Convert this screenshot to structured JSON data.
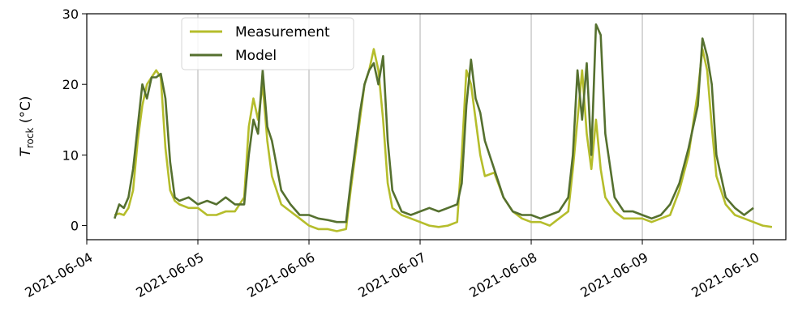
{
  "chart_data": {
    "type": "line",
    "ylabel_main": "T",
    "ylabel_sub": "rock",
    "ylabel_unit": " (°C)",
    "xlim": [
      "2021-06-04T00:00",
      "2021-06-10T07:00"
    ],
    "ylim": [
      -2,
      30
    ],
    "grid": "vertical",
    "legend_position": "top-left",
    "x_ticks": [
      "2021-06-04",
      "2021-06-05",
      "2021-06-06",
      "2021-06-07",
      "2021-06-08",
      "2021-06-09",
      "2021-06-10"
    ],
    "y_ticks": [
      0,
      10,
      20,
      30
    ],
    "series": [
      {
        "name": "Measurement",
        "color": "#b5bd2b",
        "points": [
          [
            "2021-06-04T06:00",
            1.5
          ],
          [
            "2021-06-04T07:00",
            1.7
          ],
          [
            "2021-06-04T08:00",
            1.5
          ],
          [
            "2021-06-04T09:00",
            2.5
          ],
          [
            "2021-06-04T10:00",
            5.0
          ],
          [
            "2021-06-04T11:00",
            12.0
          ],
          [
            "2021-06-04T12:00",
            17.0
          ],
          [
            "2021-06-04T13:00",
            20.0
          ],
          [
            "2021-06-04T14:00",
            21.0
          ],
          [
            "2021-06-04T15:00",
            22.0
          ],
          [
            "2021-06-04T16:00",
            21.0
          ],
          [
            "2021-06-04T17:00",
            11.0
          ],
          [
            "2021-06-04T18:00",
            5.0
          ],
          [
            "2021-06-04T19:00",
            3.5
          ],
          [
            "2021-06-04T20:00",
            3.0
          ],
          [
            "2021-06-04T22:00",
            2.5
          ],
          [
            "2021-06-05T00:00",
            2.5
          ],
          [
            "2021-06-05T02:00",
            1.5
          ],
          [
            "2021-06-05T04:00",
            1.5
          ],
          [
            "2021-06-05T06:00",
            2.0
          ],
          [
            "2021-06-05T08:00",
            2.0
          ],
          [
            "2021-06-05T10:00",
            4.0
          ],
          [
            "2021-06-05T11:00",
            14.0
          ],
          [
            "2021-06-05T12:00",
            18.0
          ],
          [
            "2021-06-05T13:00",
            15.0
          ],
          [
            "2021-06-05T14:00",
            20.0
          ],
          [
            "2021-06-05T15:00",
            12.0
          ],
          [
            "2021-06-05T16:00",
            7.0
          ],
          [
            "2021-06-05T18:00",
            3.0
          ],
          [
            "2021-06-05T20:00",
            2.0
          ],
          [
            "2021-06-05T22:00",
            1.0
          ],
          [
            "2021-06-06T00:00",
            0.0
          ],
          [
            "2021-06-06T02:00",
            -0.5
          ],
          [
            "2021-06-06T04:00",
            -0.5
          ],
          [
            "2021-06-06T06:00",
            -0.8
          ],
          [
            "2021-06-06T08:00",
            -0.5
          ],
          [
            "2021-06-06T09:00",
            5.0
          ],
          [
            "2021-06-06T10:00",
            10.0
          ],
          [
            "2021-06-06T11:00",
            15.0
          ],
          [
            "2021-06-06T12:00",
            20.0
          ],
          [
            "2021-06-06T13:00",
            22.0
          ],
          [
            "2021-06-06T14:00",
            25.0
          ],
          [
            "2021-06-06T15:00",
            22.0
          ],
          [
            "2021-06-06T16:00",
            15.0
          ],
          [
            "2021-06-06T17:00",
            6.0
          ],
          [
            "2021-06-06T18:00",
            2.5
          ],
          [
            "2021-06-06T20:00",
            1.5
          ],
          [
            "2021-06-06T22:00",
            1.0
          ],
          [
            "2021-06-07T00:00",
            0.5
          ],
          [
            "2021-06-07T02:00",
            0.0
          ],
          [
            "2021-06-07T04:00",
            -0.2
          ],
          [
            "2021-06-07T06:00",
            0.0
          ],
          [
            "2021-06-07T08:00",
            0.5
          ],
          [
            "2021-06-07T09:00",
            10.0
          ],
          [
            "2021-06-07T10:00",
            22.0
          ],
          [
            "2021-06-07T11:00",
            20.0
          ],
          [
            "2021-06-07T12:00",
            15.0
          ],
          [
            "2021-06-07T13:00",
            10.0
          ],
          [
            "2021-06-07T14:00",
            7.0
          ],
          [
            "2021-06-07T16:00",
            7.5
          ],
          [
            "2021-06-07T18:00",
            4.0
          ],
          [
            "2021-06-07T20:00",
            2.0
          ],
          [
            "2021-06-07T22:00",
            1.0
          ],
          [
            "2021-06-08T00:00",
            0.5
          ],
          [
            "2021-06-08T02:00",
            0.5
          ],
          [
            "2021-06-08T04:00",
            0.0
          ],
          [
            "2021-06-08T06:00",
            1.0
          ],
          [
            "2021-06-08T08:00",
            2.0
          ],
          [
            "2021-06-08T09:00",
            8.0
          ],
          [
            "2021-06-08T10:00",
            15.0
          ],
          [
            "2021-06-08T11:00",
            22.0
          ],
          [
            "2021-06-08T12:00",
            13.0
          ],
          [
            "2021-06-08T13:00",
            8.0
          ],
          [
            "2021-06-08T14:00",
            15.0
          ],
          [
            "2021-06-08T15:00",
            8.0
          ],
          [
            "2021-06-08T16:00",
            4.0
          ],
          [
            "2021-06-08T18:00",
            2.0
          ],
          [
            "2021-06-08T20:00",
            1.0
          ],
          [
            "2021-06-08T22:00",
            1.0
          ],
          [
            "2021-06-09T00:00",
            1.0
          ],
          [
            "2021-06-09T02:00",
            0.5
          ],
          [
            "2021-06-09T04:00",
            1.0
          ],
          [
            "2021-06-09T06:00",
            1.5
          ],
          [
            "2021-06-09T08:00",
            5.0
          ],
          [
            "2021-06-09T10:00",
            10.0
          ],
          [
            "2021-06-09T12:00",
            19.0
          ],
          [
            "2021-06-09T13:00",
            25.0
          ],
          [
            "2021-06-09T14:00",
            22.0
          ],
          [
            "2021-06-09T15:00",
            14.0
          ],
          [
            "2021-06-09T16:00",
            7.0
          ],
          [
            "2021-06-09T18:00",
            3.0
          ],
          [
            "2021-06-09T20:00",
            1.5
          ],
          [
            "2021-06-09T22:00",
            1.0
          ],
          [
            "2021-06-10T00:00",
            0.5
          ],
          [
            "2021-06-10T02:00",
            0.0
          ],
          [
            "2021-06-10T04:00",
            -0.2
          ]
        ]
      },
      {
        "name": "Model",
        "color": "#55702f",
        "points": [
          [
            "2021-06-04T06:00",
            1.0
          ],
          [
            "2021-06-04T07:00",
            3.0
          ],
          [
            "2021-06-04T08:00",
            2.5
          ],
          [
            "2021-06-04T09:00",
            4.0
          ],
          [
            "2021-06-04T10:00",
            8.0
          ],
          [
            "2021-06-04T11:00",
            14.0
          ],
          [
            "2021-06-04T12:00",
            20.0
          ],
          [
            "2021-06-04T13:00",
            18.0
          ],
          [
            "2021-06-04T14:00",
            21.0
          ],
          [
            "2021-06-04T15:00",
            21.0
          ],
          [
            "2021-06-04T16:00",
            21.5
          ],
          [
            "2021-06-04T17:00",
            18.0
          ],
          [
            "2021-06-04T18:00",
            9.0
          ],
          [
            "2021-06-04T19:00",
            4.0
          ],
          [
            "2021-06-04T20:00",
            3.5
          ],
          [
            "2021-06-04T22:00",
            4.0
          ],
          [
            "2021-06-05T00:00",
            3.0
          ],
          [
            "2021-06-05T02:00",
            3.5
          ],
          [
            "2021-06-05T04:00",
            3.0
          ],
          [
            "2021-06-05T06:00",
            4.0
          ],
          [
            "2021-06-05T08:00",
            3.0
          ],
          [
            "2021-06-05T10:00",
            3.0
          ],
          [
            "2021-06-05T11:00",
            10.0
          ],
          [
            "2021-06-05T12:00",
            15.0
          ],
          [
            "2021-06-05T13:00",
            13.0
          ],
          [
            "2021-06-05T14:00",
            22.0
          ],
          [
            "2021-06-05T15:00",
            14.0
          ],
          [
            "2021-06-05T16:00",
            12.0
          ],
          [
            "2021-06-05T18:00",
            5.0
          ],
          [
            "2021-06-05T20:00",
            3.0
          ],
          [
            "2021-06-05T22:00",
            1.5
          ],
          [
            "2021-06-06T00:00",
            1.5
          ],
          [
            "2021-06-06T02:00",
            1.0
          ],
          [
            "2021-06-06T04:00",
            0.8
          ],
          [
            "2021-06-06T06:00",
            0.5
          ],
          [
            "2021-06-06T08:00",
            0.5
          ],
          [
            "2021-06-06T09:00",
            6.0
          ],
          [
            "2021-06-06T10:00",
            11.0
          ],
          [
            "2021-06-06T11:00",
            16.0
          ],
          [
            "2021-06-06T12:00",
            20.0
          ],
          [
            "2021-06-06T13:00",
            22.0
          ],
          [
            "2021-06-06T14:00",
            23.0
          ],
          [
            "2021-06-06T15:00",
            20.0
          ],
          [
            "2021-06-06T16:00",
            24.0
          ],
          [
            "2021-06-06T17:00",
            12.0
          ],
          [
            "2021-06-06T18:00",
            5.0
          ],
          [
            "2021-06-06T20:00",
            2.0
          ],
          [
            "2021-06-06T22:00",
            1.5
          ],
          [
            "2021-06-07T00:00",
            2.0
          ],
          [
            "2021-06-07T02:00",
            2.5
          ],
          [
            "2021-06-07T04:00",
            2.0
          ],
          [
            "2021-06-07T06:00",
            2.5
          ],
          [
            "2021-06-07T08:00",
            3.0
          ],
          [
            "2021-06-07T09:00",
            6.0
          ],
          [
            "2021-06-07T10:00",
            17.0
          ],
          [
            "2021-06-07T11:00",
            23.5
          ],
          [
            "2021-06-07T12:00",
            18.0
          ],
          [
            "2021-06-07T13:00",
            16.0
          ],
          [
            "2021-06-07T14:00",
            12.0
          ],
          [
            "2021-06-07T16:00",
            8.0
          ],
          [
            "2021-06-07T18:00",
            4.0
          ],
          [
            "2021-06-07T20:00",
            2.0
          ],
          [
            "2021-06-07T22:00",
            1.5
          ],
          [
            "2021-06-08T00:00",
            1.5
          ],
          [
            "2021-06-08T02:00",
            1.0
          ],
          [
            "2021-06-08T04:00",
            1.5
          ],
          [
            "2021-06-08T06:00",
            2.0
          ],
          [
            "2021-06-08T08:00",
            4.0
          ],
          [
            "2021-06-08T09:00",
            10.0
          ],
          [
            "2021-06-08T10:00",
            22.0
          ],
          [
            "2021-06-08T11:00",
            15.0
          ],
          [
            "2021-06-08T12:00",
            23.0
          ],
          [
            "2021-06-08T13:00",
            10.0
          ],
          [
            "2021-06-08T14:00",
            28.5
          ],
          [
            "2021-06-08T15:00",
            27.0
          ],
          [
            "2021-06-08T16:00",
            13.0
          ],
          [
            "2021-06-08T18:00",
            4.0
          ],
          [
            "2021-06-08T20:00",
            2.0
          ],
          [
            "2021-06-08T22:00",
            2.0
          ],
          [
            "2021-06-09T00:00",
            1.5
          ],
          [
            "2021-06-09T02:00",
            1.0
          ],
          [
            "2021-06-09T04:00",
            1.5
          ],
          [
            "2021-06-09T06:00",
            3.0
          ],
          [
            "2021-06-09T08:00",
            6.0
          ],
          [
            "2021-06-09T10:00",
            11.0
          ],
          [
            "2021-06-09T12:00",
            17.0
          ],
          [
            "2021-06-09T13:00",
            26.5
          ],
          [
            "2021-06-09T14:00",
            24.0
          ],
          [
            "2021-06-09T15:00",
            20.0
          ],
          [
            "2021-06-09T16:00",
            10.0
          ],
          [
            "2021-06-09T18:00",
            4.0
          ],
          [
            "2021-06-09T20:00",
            2.5
          ],
          [
            "2021-06-09T22:00",
            1.5
          ],
          [
            "2021-06-10T00:00",
            2.5
          ]
        ]
      }
    ]
  }
}
